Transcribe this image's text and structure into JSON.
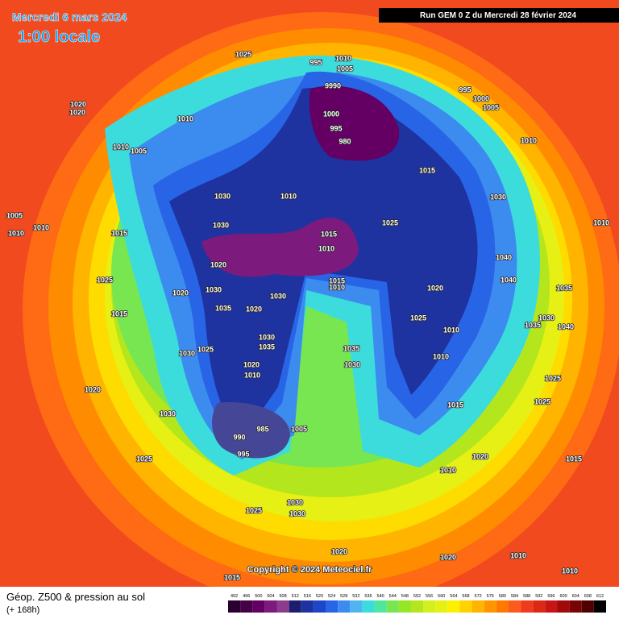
{
  "header": {
    "date": "Mercredi 6 mars 2024",
    "time": "1:00 locale",
    "run": "Run GEM 0 Z du Mercredi 28 février 2024"
  },
  "copyright": "Copyright © 2024 Meteociel.fr",
  "legend": {
    "title": "Géop. Z500 & pression au sol",
    "subtitle": "(+ 168h)",
    "scale": [
      492,
      496,
      500,
      504,
      508,
      512,
      516,
      520,
      524,
      528,
      532,
      536,
      540,
      544,
      548,
      552,
      556,
      560,
      564,
      568,
      572,
      576,
      580,
      584,
      588,
      592,
      596,
      600,
      604,
      608,
      612
    ],
    "colors": [
      "#2a0030",
      "#460046",
      "#640064",
      "#7d1a7d",
      "#8c3c8c",
      "#1e1e6e",
      "#1e32a0",
      "#1e46c8",
      "#2864e6",
      "#3c8cf0",
      "#50b4f0",
      "#3cdcdc",
      "#50e6a0",
      "#78e650",
      "#96e628",
      "#b4e61e",
      "#d2f01e",
      "#e6f014",
      "#fff000",
      "#ffd200",
      "#ffb400",
      "#ff9600",
      "#ff7800",
      "#ff5a1e",
      "#f03c1e",
      "#dc2814",
      "#c81414",
      "#a00a0a",
      "#780505",
      "#500000",
      "#000000"
    ]
  },
  "pressure_labels": [
    1025,
    995,
    1010,
    1005,
    9990,
    1000,
    995,
    980,
    1020,
    1020,
    1010,
    1010,
    1005,
    1005,
    1010,
    1010,
    1030,
    1010,
    1030,
    1015,
    1015,
    1010,
    1020,
    1025,
    1030,
    1020,
    1035,
    1020,
    1030,
    1015,
    1010,
    1025,
    1015,
    1030,
    1010,
    1040,
    1040,
    1035,
    1020,
    1025,
    1010,
    1030,
    1040,
    1035,
    1025,
    1025,
    1010,
    1015,
    1020,
    1015,
    1010,
    1030,
    1025,
    1030,
    1035,
    1035,
    1030,
    1020,
    1010,
    1020,
    1030,
    1025,
    985,
    990,
    995,
    1005,
    1025,
    1030,
    1030,
    1020,
    1020,
    1010,
    1010,
    1015,
    995,
    1000,
    1005,
    1010,
    1015
  ]
}
